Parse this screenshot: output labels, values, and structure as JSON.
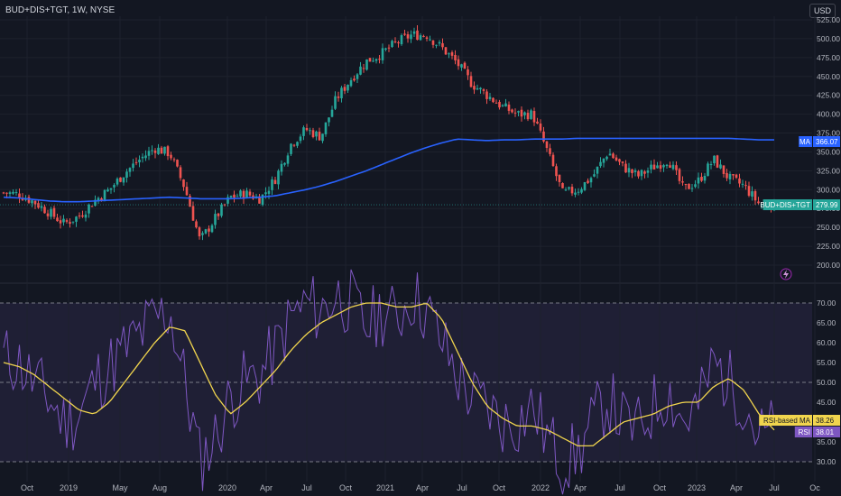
{
  "title": "BUD+DIS+TGT, 1W, NYSE",
  "currency_button": "USD",
  "colors": {
    "background": "#131722",
    "up": "#26a69a",
    "down": "#ef5350",
    "ma": "#2962ff",
    "rsi": "#7e57c2",
    "rsi_ma": "#f1d54e",
    "grid": "#1e222d"
  },
  "chart_data": [
    {
      "type": "candlestick",
      "symbol": "BUD+DIS+TGT",
      "interval": "1W",
      "y_ticks": [
        200,
        225,
        250,
        275,
        300,
        325,
        350,
        375,
        400,
        425,
        450,
        475,
        500,
        525
      ],
      "ylim": [
        190,
        530
      ],
      "x_ticks": [
        "Oct",
        "2019",
        "May",
        "Aug",
        "2020",
        "Apr",
        "Jul",
        "Oct",
        "2021",
        "Apr",
        "Jul",
        "Oct",
        "2022",
        "Apr",
        "Jul",
        "Oct",
        "2023",
        "Apr",
        "Jul",
        "Oc"
      ],
      "close_path_monthly": [
        296,
        294,
        284,
        270,
        255,
        265,
        285,
        300,
        322,
        340,
        355,
        348,
        302,
        232,
        262,
        290,
        295,
        288,
        315,
        360,
        380,
        370,
        420,
        447,
        470,
        480,
        495,
        505,
        505,
        488,
        468,
        440,
        425,
        410,
        400,
        400,
        350,
        295,
        300,
        318,
        350,
        330,
        318,
        330,
        340,
        300,
        312,
        340,
        315,
        305,
        281,
        280
      ],
      "ma_path_monthly": [
        290,
        289,
        287,
        285,
        284,
        284,
        285,
        286,
        287,
        288,
        289,
        290,
        289,
        288,
        288,
        288,
        289,
        290,
        292,
        296,
        300,
        305,
        311,
        318,
        325,
        333,
        341,
        349,
        356,
        362,
        367,
        366,
        365,
        366,
        366,
        367,
        367,
        367,
        368,
        368,
        368,
        368,
        368,
        368,
        368,
        368,
        368,
        368,
        368,
        367,
        366,
        366
      ],
      "labels": {
        "ma_label": "MA",
        "ma_value": "366.07",
        "price_label": "BUD+DIS+TGT",
        "price_value": "279.99"
      }
    },
    {
      "type": "line",
      "indicator": "RSI",
      "y_ticks": [
        "70.00",
        "65.00",
        "60.00",
        "55.00",
        "50.00",
        "45.00",
        "40.00",
        "35.00",
        "30.00"
      ],
      "ylim": [
        27,
        75
      ],
      "bands": [
        30,
        50,
        70
      ],
      "rsi_path_monthly": [
        56,
        55,
        50,
        46,
        40,
        42,
        50,
        54,
        58,
        62,
        66,
        68,
        50,
        30,
        36,
        46,
        50,
        52,
        58,
        66,
        70,
        68,
        72,
        70,
        64,
        68,
        66,
        72,
        68,
        60,
        52,
        46,
        44,
        40,
        40,
        44,
        36,
        30,
        32,
        40,
        46,
        40,
        38,
        44,
        48,
        40,
        44,
        55,
        50,
        46,
        36,
        38
      ],
      "rsi_ma_path_monthly": [
        55,
        54,
        52,
        49,
        46,
        43,
        42,
        45,
        50,
        55,
        60,
        64,
        63,
        55,
        47,
        42,
        45,
        49,
        53,
        58,
        62,
        65,
        67,
        69,
        70,
        70,
        69,
        69,
        70,
        66,
        58,
        50,
        44,
        41,
        39,
        39,
        38,
        36,
        34,
        34,
        37,
        40,
        41,
        42,
        44,
        45,
        45,
        49,
        51,
        48,
        42,
        38
      ],
      "labels": {
        "rsi_ma_label": "RSI-based MA",
        "rsi_ma_value": "38.26",
        "rsi_label": "RSI",
        "rsi_value": "38.01"
      }
    }
  ]
}
